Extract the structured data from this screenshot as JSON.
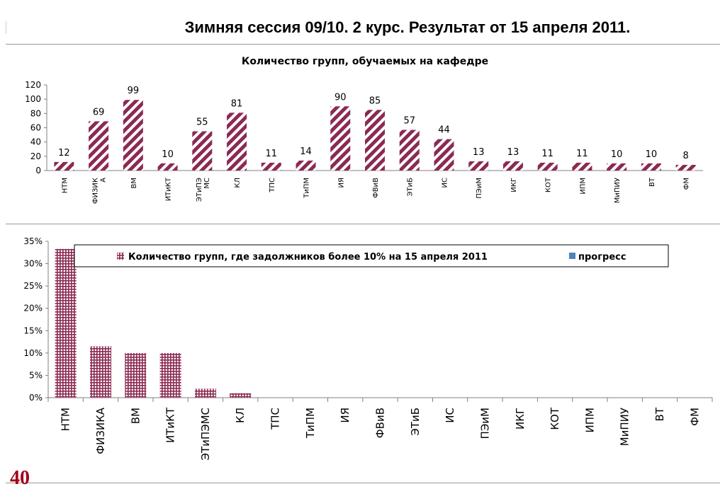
{
  "slide": {
    "title": "Зимняя сессия 09/10.   2 курс.  Результат от 15 апреля 2011.",
    "page_number": "40"
  },
  "colors": {
    "bar_pattern": "#8b2a52",
    "progress": "#4f81bd",
    "axis": "#808080",
    "slide_number": "#a3001b"
  },
  "chart_data": [
    {
      "type": "bar",
      "title": "Количество групп, обучаемых на кафедре",
      "categories": [
        "НТМ",
        "ФИЗИКА",
        "ВМ",
        "ИТиКТ",
        "ЭТиПЭМС",
        "КЛ",
        "ТПС",
        "ТиПМ",
        "ИЯ",
        "ФВиВ",
        "ЭТиБ",
        "ИС",
        "ПЭиМ",
        "ИКГ",
        "КОТ",
        "ИПМ",
        "МиПИУ",
        "ВТ",
        "ФМ"
      ],
      "category_labels": [
        [
          "НТМ"
        ],
        [
          "ФИЗИК",
          "А"
        ],
        [
          "ВМ"
        ],
        [
          "ИТиКТ"
        ],
        [
          "ЭТиПЭ",
          "МС"
        ],
        [
          "КЛ"
        ],
        [
          "ТПС"
        ],
        [
          "ТиПМ"
        ],
        [
          "ИЯ"
        ],
        [
          "ФВиВ"
        ],
        [
          "ЭТиБ"
        ],
        [
          "ИС"
        ],
        [
          "ПЭиМ"
        ],
        [
          "ИКГ"
        ],
        [
          "КОТ"
        ],
        [
          "ИПМ"
        ],
        [
          "МиПИУ"
        ],
        [
          "ВТ"
        ],
        [
          "ФМ"
        ]
      ],
      "values": [
        12,
        69,
        99,
        10,
        55,
        81,
        11,
        14,
        90,
        85,
        57,
        44,
        13,
        13,
        11,
        11,
        10,
        10,
        8
      ],
      "value_labels": [
        "12",
        "69",
        "99",
        "10",
        "55",
        "81",
        "11",
        "14",
        "90",
        "85",
        "57",
        "44",
        "13",
        "13",
        "11",
        "11",
        "10",
        "10",
        "8"
      ],
      "ylim": [
        0,
        120
      ],
      "yticks": [
        "0",
        "20",
        "40",
        "60",
        "80",
        "100",
        "120"
      ],
      "xlabel": "",
      "ylabel": "",
      "grid": false,
      "legend": "none",
      "pattern": "diagonal-stripes"
    },
    {
      "type": "bar",
      "title": "",
      "categories": [
        "НТМ",
        "ФИЗИКА",
        "ВМ",
        "ИТиКТ",
        "ЭТиПЭМС",
        "КЛ",
        "ТПС",
        "ТиПМ",
        "ИЯ",
        "ФВиВ",
        "ЭТиБ",
        "ИС",
        "ПЭиМ",
        "ИКГ",
        "КОТ",
        "ИПМ",
        "МиПИУ",
        "ВТ",
        "ФМ"
      ],
      "series": [
        {
          "name": "Количество групп, где задолжников более  10% на 15 апреля 2011",
          "values": [
            33.3,
            11.5,
            10,
            10,
            2,
            1,
            0,
            0,
            0,
            0,
            0,
            0,
            0,
            0,
            0,
            0,
            0,
            0,
            0
          ],
          "pattern": "grid"
        },
        {
          "name": "прогресс",
          "values": [
            0,
            0,
            0,
            0,
            0,
            0,
            0,
            0,
            0,
            0,
            0,
            0,
            0,
            0,
            0,
            0,
            0,
            0,
            0
          ]
        }
      ],
      "ylim": [
        0,
        35
      ],
      "yticks": [
        "0%",
        "5%",
        "10%",
        "15%",
        "20%",
        "25%",
        "30%",
        "35%"
      ],
      "xlabel": "",
      "ylabel": "",
      "grid": false,
      "legend": "top"
    }
  ]
}
